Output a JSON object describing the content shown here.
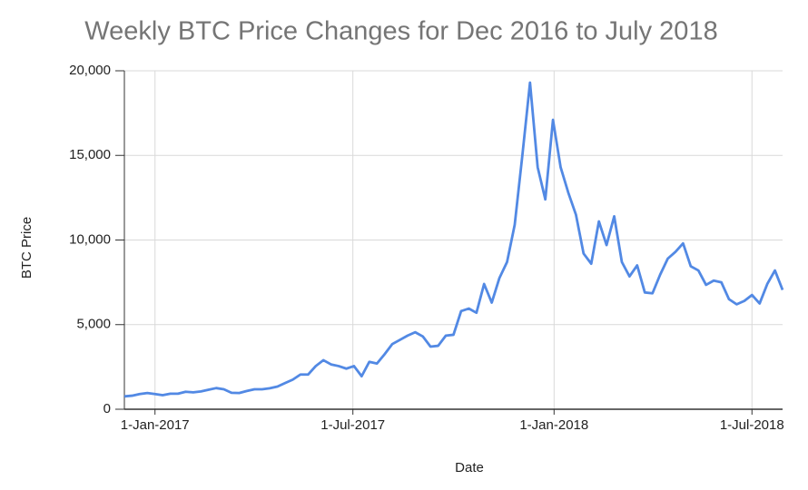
{
  "chart_data": {
    "type": "line",
    "title": "Weekly BTC Price Changes for Dec 2016 to July 2018",
    "x_label": "Date",
    "y_label": "BTC Price",
    "x": [
      "2016-12-04",
      "2016-12-11",
      "2016-12-18",
      "2016-12-25",
      "2017-01-01",
      "2017-01-08",
      "2017-01-15",
      "2017-01-22",
      "2017-01-29",
      "2017-02-05",
      "2017-02-12",
      "2017-02-19",
      "2017-02-26",
      "2017-03-05",
      "2017-03-12",
      "2017-03-19",
      "2017-03-26",
      "2017-04-02",
      "2017-04-09",
      "2017-04-16",
      "2017-04-23",
      "2017-04-30",
      "2017-05-07",
      "2017-05-14",
      "2017-05-21",
      "2017-05-28",
      "2017-06-04",
      "2017-06-11",
      "2017-06-18",
      "2017-06-25",
      "2017-07-02",
      "2017-07-09",
      "2017-07-16",
      "2017-07-23",
      "2017-07-30",
      "2017-08-06",
      "2017-08-13",
      "2017-08-20",
      "2017-08-27",
      "2017-09-03",
      "2017-09-10",
      "2017-09-17",
      "2017-09-24",
      "2017-10-01",
      "2017-10-08",
      "2017-10-15",
      "2017-10-22",
      "2017-10-29",
      "2017-11-05",
      "2017-11-12",
      "2017-11-19",
      "2017-11-26",
      "2017-12-03",
      "2017-12-10",
      "2017-12-17",
      "2017-12-24",
      "2017-12-31",
      "2018-01-07",
      "2018-01-14",
      "2018-01-21",
      "2018-01-28",
      "2018-02-04",
      "2018-02-11",
      "2018-02-18",
      "2018-02-25",
      "2018-03-04",
      "2018-03-11",
      "2018-03-18",
      "2018-03-25",
      "2018-04-01",
      "2018-04-08",
      "2018-04-15",
      "2018-04-22",
      "2018-04-29",
      "2018-05-06",
      "2018-05-13",
      "2018-05-20",
      "2018-05-27",
      "2018-06-03",
      "2018-06-10",
      "2018-06-17",
      "2018-06-24",
      "2018-07-01",
      "2018-07-08",
      "2018-07-15",
      "2018-07-22",
      "2018-07-29"
    ],
    "series": [
      {
        "name": "BTC Price",
        "color": "#5289e4",
        "values": [
          760,
          800,
          900,
          960,
          900,
          830,
          920,
          920,
          1030,
          1000,
          1050,
          1150,
          1250,
          1180,
          970,
          960,
          1080,
          1180,
          1180,
          1240,
          1340,
          1550,
          1750,
          2050,
          2050,
          2550,
          2900,
          2650,
          2550,
          2400,
          2550,
          1950,
          2800,
          2700,
          3250,
          3850,
          4100,
          4350,
          4550,
          4300,
          3700,
          3750,
          4350,
          4400,
          5800,
          5950,
          5700,
          7400,
          6300,
          7750,
          8700,
          10900,
          15000,
          19300,
          14300,
          12400,
          17100,
          14300,
          12800,
          11500,
          9200,
          8600,
          11100,
          9700,
          11400,
          8700,
          7850,
          8500,
          6900,
          6850,
          7950,
          8900,
          9300,
          9800,
          8450,
          8200,
          7350,
          7600,
          7500,
          6500,
          6200,
          6400,
          6750,
          6250,
          7400,
          8200,
          7050
        ]
      }
    ],
    "xlim": [
      "2016-12-04",
      "2018-07-29"
    ],
    "xticks": [
      {
        "value": "2017-01-01",
        "label": "1-Jan-2017"
      },
      {
        "value": "2017-07-01",
        "label": "1-Jul-2017"
      },
      {
        "value": "2018-01-01",
        "label": "1-Jan-2018"
      },
      {
        "value": "2018-07-01",
        "label": "1-Jul-2018"
      }
    ],
    "ylim": [
      0,
      20000
    ],
    "yticks": [
      0,
      {
        "value": 5000,
        "label": "5,000"
      },
      {
        "value": 10000,
        "label": "10,000"
      },
      {
        "value": 15000,
        "label": "15,000"
      },
      {
        "value": 20000,
        "label": "20,000"
      }
    ],
    "grid": true
  }
}
